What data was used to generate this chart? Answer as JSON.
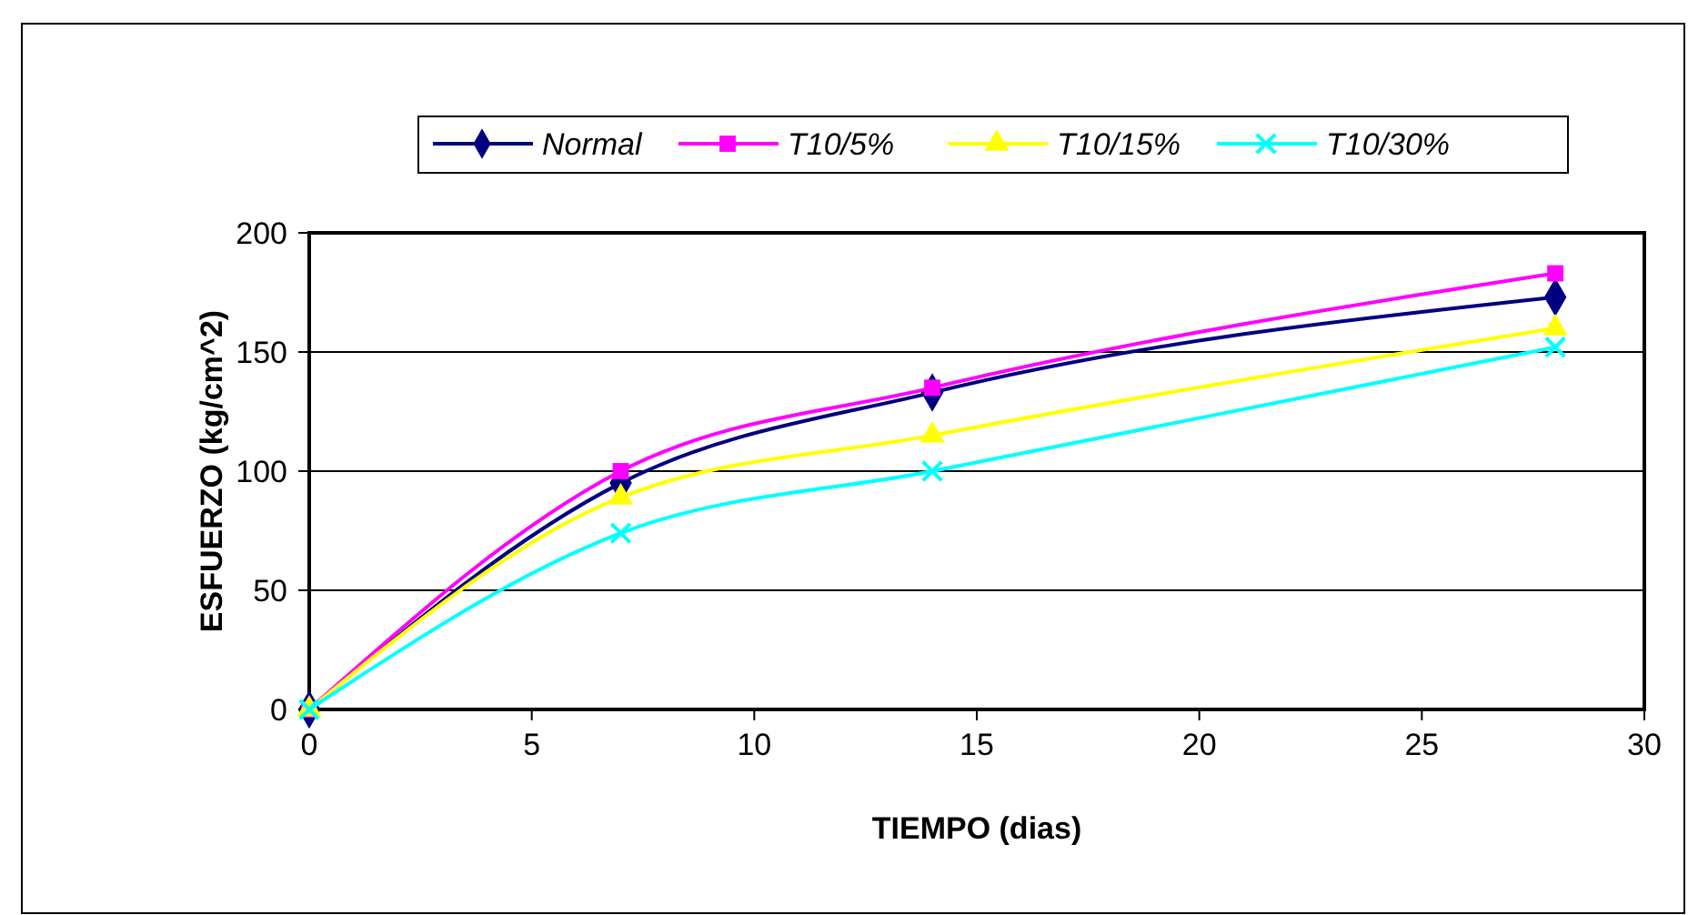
{
  "chart_data": {
    "type": "line",
    "xlabel": "TIEMPO (dias)",
    "ylabel": "ESFUERZO (kg/cm^2)",
    "x": [
      0,
      7,
      14,
      28
    ],
    "series": [
      {
        "name": "Normal",
        "color": "#000080",
        "marker": "diamond",
        "values": [
          0,
          95,
          133,
          173
        ]
      },
      {
        "name": "T10/5%",
        "color": "#ff00ff",
        "marker": "square",
        "values": [
          0,
          100,
          135,
          183
        ]
      },
      {
        "name": "T10/15%",
        "color": "#ffff00",
        "marker": "triangle",
        "values": [
          0,
          89,
          115,
          160
        ]
      },
      {
        "name": "T10/30%",
        "color": "#00ffff",
        "marker": "cross",
        "values": [
          0,
          74,
          100,
          152
        ]
      }
    ],
    "xlim": [
      0,
      30
    ],
    "xticks": [
      0,
      5,
      10,
      15,
      20,
      25,
      30
    ],
    "ylim": [
      0,
      200
    ],
    "yticks": [
      0,
      50,
      100,
      150,
      200
    ],
    "grid": "y",
    "legend": "top",
    "line_style": "solid"
  }
}
